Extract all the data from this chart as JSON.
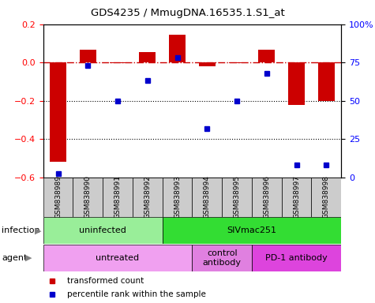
{
  "title": "GDS4235 / MmugDNA.16535.1.S1_at",
  "samples": [
    "GSM838989",
    "GSM838990",
    "GSM838991",
    "GSM838992",
    "GSM838993",
    "GSM838994",
    "GSM838995",
    "GSM838996",
    "GSM838997",
    "GSM838998"
  ],
  "bar_values": [
    -0.52,
    0.065,
    -0.005,
    0.055,
    0.145,
    -0.02,
    -0.005,
    0.065,
    -0.22,
    -0.2
  ],
  "dot_values": [
    2.5,
    73,
    50,
    63,
    78,
    32,
    50,
    68,
    8,
    8
  ],
  "ylim_left": [
    -0.6,
    0.2
  ],
  "ylim_right": [
    0,
    100
  ],
  "yticks_left": [
    -0.6,
    -0.4,
    -0.2,
    0.0,
    0.2
  ],
  "yticks_right": [
    0,
    25,
    50,
    75,
    100
  ],
  "ytick_labels_right": [
    "0",
    "25",
    "50",
    "75",
    "100%"
  ],
  "bar_color": "#cc0000",
  "dot_color": "#0000cc",
  "hline_color": "#cc0000",
  "grid_color": "#000000",
  "infection_labels": [
    {
      "text": "uninfected",
      "start": 0,
      "end": 4,
      "color": "#aaeea a"
    },
    {
      "text": "SIVmac251",
      "start": 4,
      "end": 10,
      "color": "#44dd44"
    }
  ],
  "agent_labels": [
    {
      "text": "untreated",
      "start": 0,
      "end": 5,
      "color": "#f0a0f0"
    },
    {
      "text": "control\nantibody",
      "start": 5,
      "end": 7,
      "color": "#e070e0"
    },
    {
      "text": "PD-1 antibody",
      "start": 7,
      "end": 10,
      "color": "#dd44dd"
    }
  ],
  "infection_row_label": "infection",
  "agent_row_label": "agent",
  "legend_items": [
    {
      "label": "transformed count",
      "color": "#cc0000"
    },
    {
      "label": "percentile rank within the sample",
      "color": "#0000cc"
    }
  ],
  "bg_color": "#ffffff",
  "tick_cell_color": "#cccccc",
  "infection_colors": [
    "#99ee99",
    "#33dd33"
  ],
  "agent_colors": [
    "#f0a0f0",
    "#e080e0",
    "#dd44dd"
  ]
}
